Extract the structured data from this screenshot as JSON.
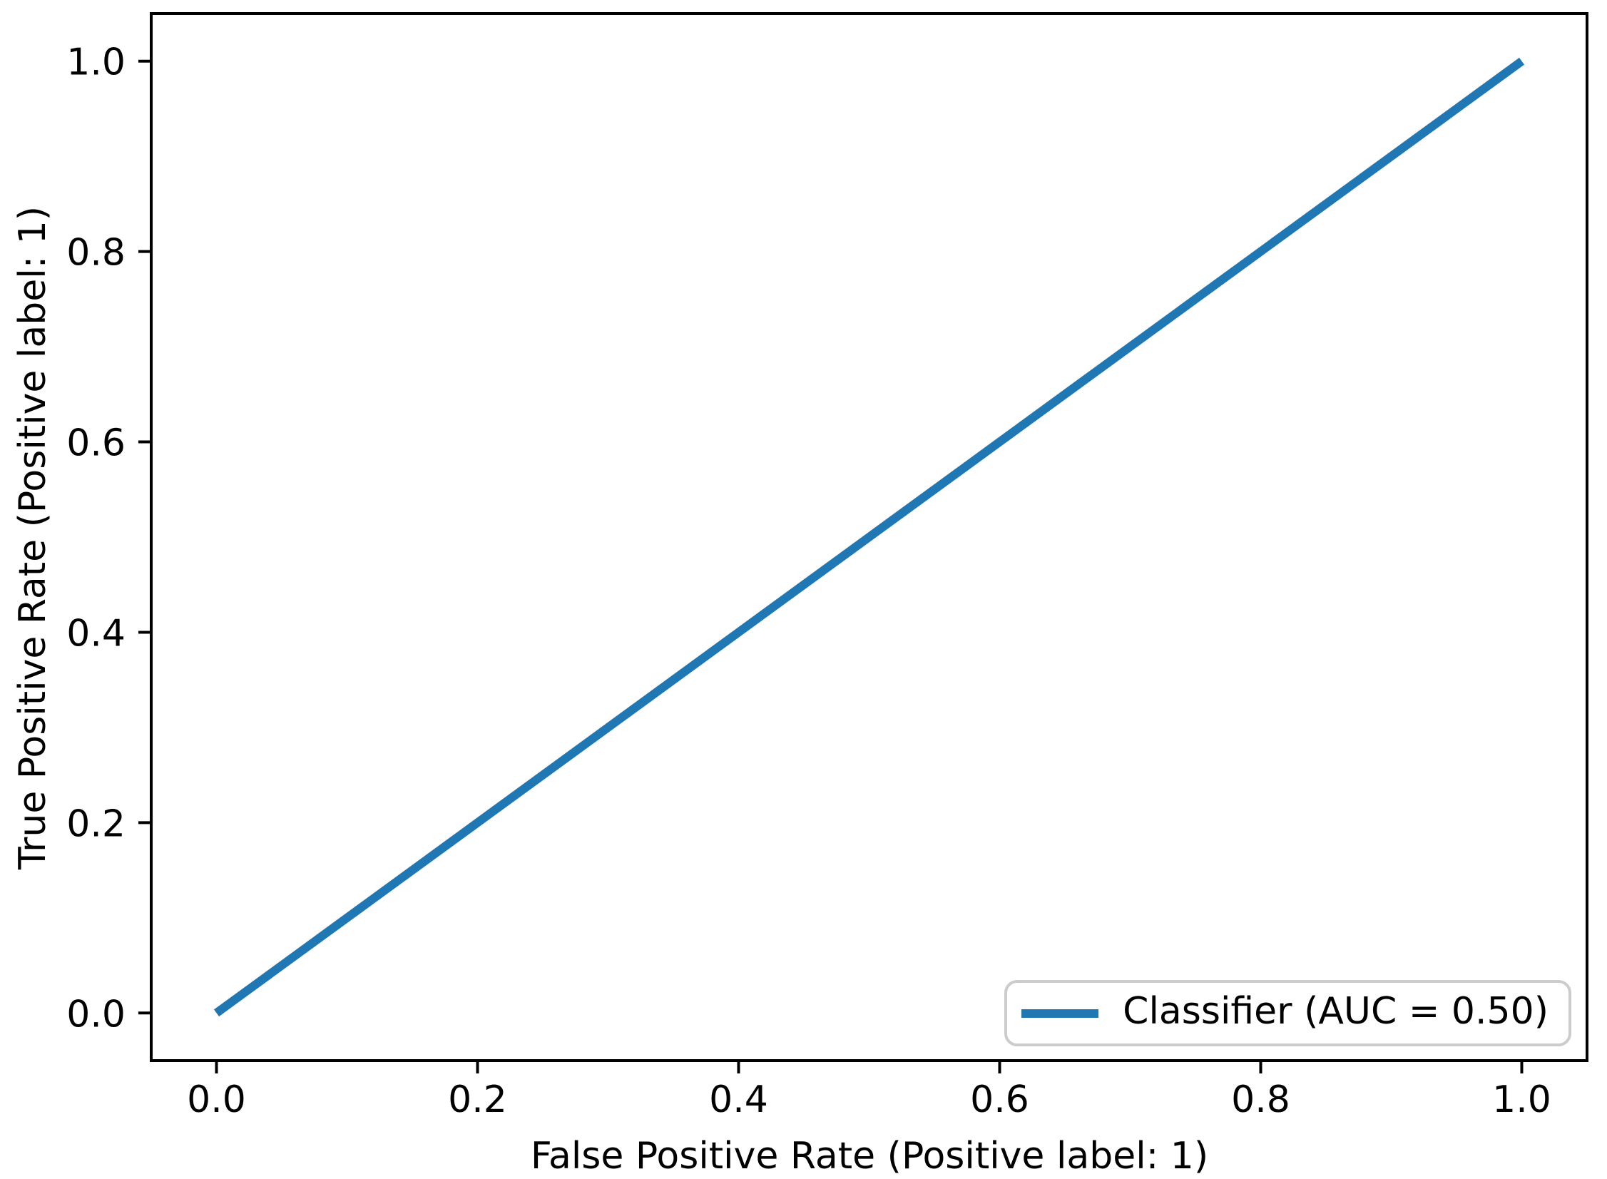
{
  "chart_data": {
    "type": "line",
    "title": "",
    "xlabel": "False Positive Rate (Positive label: 1)",
    "ylabel": "True Positive Rate (Positive label: 1)",
    "xlim": [
      -0.05,
      1.05
    ],
    "ylim": [
      -0.05,
      1.05
    ],
    "grid": false,
    "xticks": {
      "values": [
        0.0,
        0.2,
        0.4,
        0.6,
        0.8,
        1.0
      ],
      "labels": [
        "0.0",
        "0.2",
        "0.4",
        "0.6",
        "0.8",
        "1.0"
      ]
    },
    "yticks": {
      "values": [
        0.0,
        0.2,
        0.4,
        0.6,
        0.8,
        1.0
      ],
      "labels": [
        "0.0",
        "0.2",
        "0.4",
        "0.6",
        "0.8",
        "1.0"
      ]
    },
    "series": [
      {
        "name": "Classifier (AUC = 0.50)",
        "color": "#1f77b4",
        "x": [
          0.0,
          1.0
        ],
        "y": [
          0.0,
          1.0
        ]
      }
    ],
    "legend": {
      "position": "lower right",
      "entries": [
        {
          "label": "Classifier (AUC = 0.50)",
          "color": "#1f77b4"
        }
      ]
    },
    "colors": {
      "spine": "#000000",
      "tick": "#000000",
      "text": "#000000",
      "legend_border": "#cccccc",
      "background": "#ffffff"
    }
  }
}
